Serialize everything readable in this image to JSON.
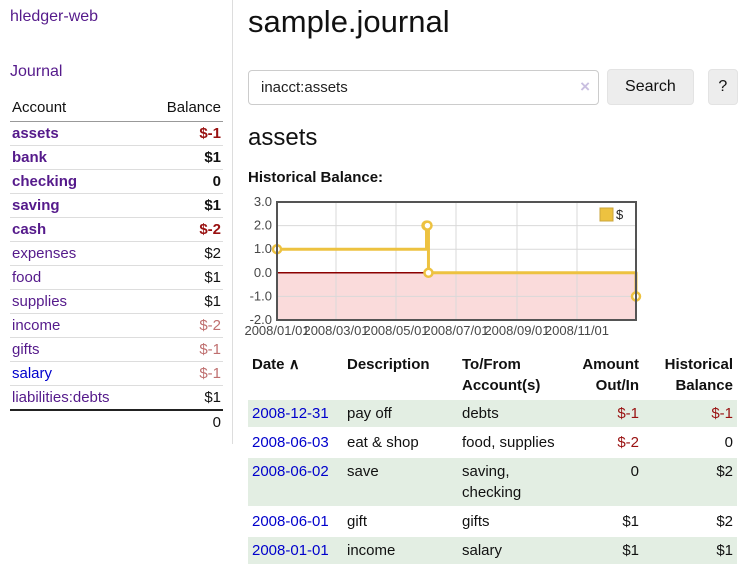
{
  "app": {
    "title": "hledger-web",
    "nav_journal": "Journal"
  },
  "sidebar": {
    "headers": {
      "account": "Account",
      "balance": "Balance"
    },
    "accounts": [
      {
        "name": "assets",
        "depth": 1,
        "bold": true,
        "variant": "v",
        "balance": "$-1",
        "balance_class": "neg"
      },
      {
        "name": "bank",
        "depth": 2,
        "bold": true,
        "variant": "v",
        "balance": "$1",
        "balance_class": ""
      },
      {
        "name": "checking",
        "depth": 3,
        "bold": true,
        "variant": "v",
        "balance": "0",
        "balance_class": ""
      },
      {
        "name": "saving",
        "depth": 3,
        "bold": true,
        "variant": "v",
        "balance": "$1",
        "balance_class": ""
      },
      {
        "name": "cash",
        "depth": 2,
        "bold": true,
        "variant": "v",
        "balance": "$-2",
        "balance_class": "neg"
      },
      {
        "name": "expenses",
        "depth": 1,
        "bold": false,
        "variant": "v",
        "balance": "$2",
        "balance_class": ""
      },
      {
        "name": "food",
        "depth": 2,
        "bold": false,
        "variant": "v",
        "balance": "$1",
        "balance_class": ""
      },
      {
        "name": "supplies",
        "depth": 2,
        "bold": false,
        "variant": "v",
        "balance": "$1",
        "balance_class": ""
      },
      {
        "name": "income",
        "depth": 1,
        "bold": false,
        "variant": "v",
        "balance": "$-2",
        "balance_class": "negsoft"
      },
      {
        "name": "gifts",
        "depth": 2,
        "bold": false,
        "variant": "v",
        "balance": "$-1",
        "balance_class": "negsoft"
      },
      {
        "name": "salary",
        "depth": 2,
        "bold": false,
        "variant": "u",
        "balance": "$-1",
        "balance_class": "negsoft"
      },
      {
        "name": "liabilities:debts",
        "depth": 1,
        "bold": false,
        "variant": "v",
        "balance": "$1",
        "balance_class": ""
      }
    ],
    "total": "0"
  },
  "main": {
    "title": "sample.journal",
    "search": {
      "value": "inacct:assets",
      "clear_icon": "×",
      "button": "Search",
      "help_button": "?"
    },
    "account_heading": "assets",
    "chart_heading": "Historical Balance:"
  },
  "chart_data": {
    "type": "line",
    "title": "Historical Balance:",
    "series": [
      {
        "name": "$",
        "color": "#edc240",
        "steps": true,
        "points": [
          {
            "x": "2008-01-01",
            "y": 1
          },
          {
            "x": "2008-06-01",
            "y": 2
          },
          {
            "x": "2008-06-02",
            "y": 2
          },
          {
            "x": "2008-06-03",
            "y": 0
          },
          {
            "x": "2008-12-31",
            "y": -1
          }
        ]
      }
    ],
    "x_range": [
      "2008-01-01",
      "2008-12-31"
    ],
    "x_ticks": [
      "2008/01/01",
      "2008/03/01",
      "2008/05/01",
      "2008/07/01",
      "2008/09/01",
      "2008/11/01"
    ],
    "ylim": [
      -2,
      3
    ],
    "y_tick_step": 1,
    "grid": true,
    "legend_position": "top-right",
    "zero_line_color": "#8b0000",
    "negative_region_fill": "#fadbdb",
    "border_color": "#545454",
    "grid_color": "#d9d9d9"
  },
  "register": {
    "headers": {
      "date": "Date",
      "sort_icon": "∧",
      "description": "Description",
      "accounts": "To/From Account(s)",
      "amount": "Amount Out/In",
      "balance": "Historical Balance"
    },
    "rows": [
      {
        "date": "2008-12-31",
        "description": "pay off",
        "accounts": "debts",
        "amount": "$-1",
        "amount_class": "neg",
        "balance": "$-1",
        "balance_class": "neg"
      },
      {
        "date": "2008-06-03",
        "description": "eat & shop",
        "accounts": "food, supplies",
        "amount": "$-2",
        "amount_class": "neg",
        "balance": "0",
        "balance_class": ""
      },
      {
        "date": "2008-06-02",
        "description": "save",
        "accounts": "saving, checking",
        "amount": "0",
        "amount_class": "",
        "balance": "$2",
        "balance_class": ""
      },
      {
        "date": "2008-06-01",
        "description": "gift",
        "accounts": "gifts",
        "amount": "$1",
        "amount_class": "",
        "balance": "$2",
        "balance_class": ""
      },
      {
        "date": "2008-01-01",
        "description": "income",
        "accounts": "salary",
        "amount": "$1",
        "amount_class": "",
        "balance": "$1",
        "balance_class": ""
      }
    ]
  },
  "colors": {
    "link_purple": "#551a8b",
    "link_blue": "#0000cc",
    "negative_strong": "#991111",
    "negative_soft": "#bf6f6f",
    "row_green": "#e3eee3",
    "chart_line": "#edc240"
  }
}
